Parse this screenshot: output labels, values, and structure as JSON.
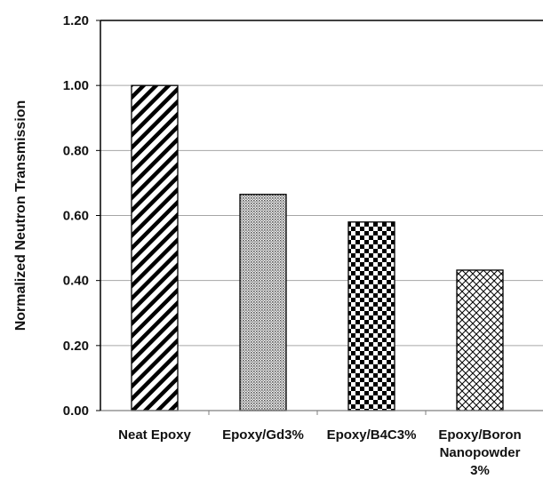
{
  "chart_data": {
    "type": "bar",
    "title": "",
    "xlabel": "",
    "ylabel": "Normalized Neutron Transmission",
    "ylim": [
      0,
      1.2
    ],
    "yticks": [
      "0.00",
      "0.20",
      "0.40",
      "0.60",
      "0.80",
      "1.00",
      "1.20"
    ],
    "grid": true,
    "categories": [
      "Neat Epoxy",
      "Epoxy/Gd3%",
      "Epoxy/B4C3%",
      "Epoxy/Boron Nanopowder 3%"
    ],
    "category_label_lines": [
      [
        "Neat Epoxy"
      ],
      [
        "Epoxy/Gd3%"
      ],
      [
        "Epoxy/B4C3%"
      ],
      [
        "Epoxy/Boron",
        "Nanopowder",
        "3%"
      ]
    ],
    "values": [
      1.0,
      0.665,
      0.58,
      0.432
    ],
    "fill_patterns": [
      "diagonal-stripes",
      "fine-dots",
      "checkerboard",
      "crosshatch"
    ],
    "colors": {
      "bar_outline": "#000000",
      "grid": "#a6a6a6",
      "axis": "#7f7f7f",
      "text": "#111111"
    }
  }
}
